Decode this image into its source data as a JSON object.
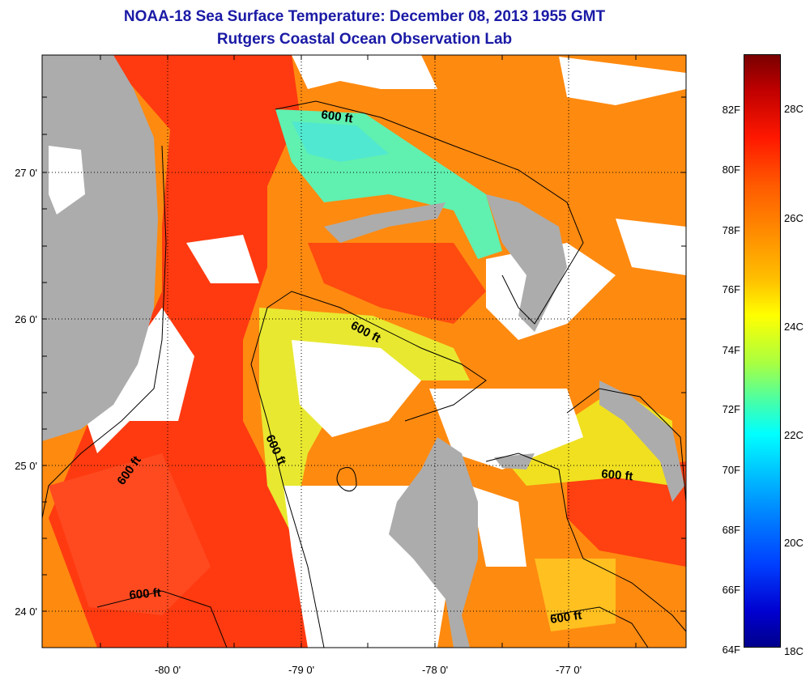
{
  "title": {
    "line1": "NOAA-18 Sea Surface Temperature:  December 08, 2013 1955 GMT",
    "line2": "Rutgers Coastal Ocean Observation Lab"
  },
  "map": {
    "latitude_labels": [
      "27 0'",
      "26 0'",
      "25 0'",
      "24 0'"
    ],
    "longitude_labels": [
      "-80 0'",
      "-79 0'",
      "-78 0'",
      "-77 0'"
    ],
    "contour_labels": [
      "600 ft",
      "600 ft",
      "600 ft",
      "600 ft",
      "600 ft",
      "600 ft"
    ],
    "colors": {
      "land": "#acacac",
      "cloud": "#ffffff",
      "warm_water": "#ff4a10",
      "mid_water": "#ff8c10",
      "cool_water": "#f0e020",
      "cold_water": "#60f0b0"
    }
  },
  "colorbar": {
    "fahrenheit_labels": [
      "82F",
      "80F",
      "78F",
      "76F",
      "74F",
      "72F",
      "70F",
      "68F",
      "66F",
      "64F"
    ],
    "celsius_labels": [
      "28C",
      "26C",
      "24C",
      "22C",
      "20C",
      "18C"
    ],
    "range_f": [
      64,
      83
    ],
    "range_c": [
      18,
      28.5
    ]
  }
}
